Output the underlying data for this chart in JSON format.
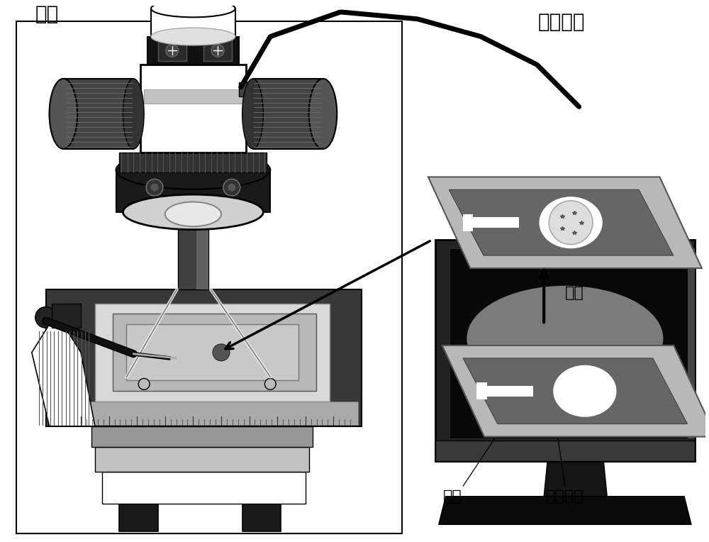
{
  "bg_color": "#ffffff",
  "label_anbox": "暗箱",
  "label_image_collect": "图像采集",
  "label_analyze": "分析",
  "label_substrate": "基底",
  "label_chip": "布基芯片",
  "font_size_title": 20,
  "font_size_label": 16,
  "microscope_colors": {
    "white_body": "#f0f0f0",
    "black_body": "#1a1a1a",
    "dark_gray": "#333333",
    "med_gray": "#666666",
    "light_gray": "#aaaaaa",
    "knob_color": "#444444",
    "pillar_color": "#555555",
    "stage_top": "#383838",
    "base_light": "#c0c0c0",
    "base_med": "#989898",
    "base_dark": "#787878"
  },
  "card_colors": {
    "outer_light": "#b8b8b8",
    "outer_dark": "#888888",
    "inner_light": "#999999",
    "inner_dark": "#666666",
    "spoon_white": "#f5f5f5"
  },
  "monitor_colors": {
    "frame": "#2a2a2a",
    "screen": "#0a0a0a",
    "glow": "#888888",
    "stand": "#111111",
    "bezel": "#3a3a3a"
  }
}
